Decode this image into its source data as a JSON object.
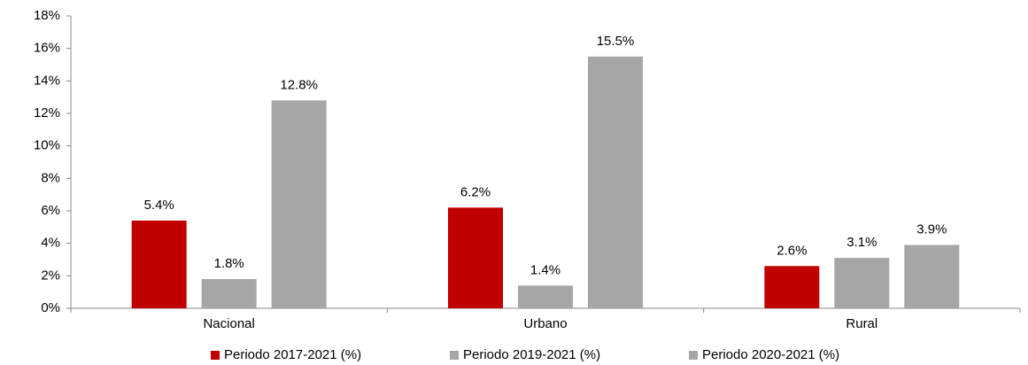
{
  "chart_data": {
    "type": "bar",
    "categories": [
      "Nacional",
      "Urbano",
      "Rural"
    ],
    "series": [
      {
        "name": "Periodo 2017-2021 (%)",
        "color": "#c00000",
        "values": [
          5.4,
          6.2,
          2.6
        ],
        "value_labels": [
          "5.4%",
          "6.2%",
          "2.6%"
        ]
      },
      {
        "name": "Periodo 2019-2021 (%)",
        "color": "#a6a6a6",
        "values": [
          1.8,
          1.4,
          3.1
        ],
        "value_labels": [
          "1.8%",
          "1.4%",
          "3.1%"
        ]
      },
      {
        "name": "Periodo 2020-2021 (%)",
        "color": "#a6a6a6",
        "values": [
          12.8,
          15.5,
          3.9
        ],
        "value_labels": [
          "12.8%",
          "15.5%",
          "3.9%"
        ]
      }
    ],
    "ylim": [
      0,
      18
    ],
    "yticks": [
      {
        "value": 0,
        "label": "0%"
      },
      {
        "value": 2,
        "label": "2%"
      },
      {
        "value": 4,
        "label": "4%"
      },
      {
        "value": 6,
        "label": "6%"
      },
      {
        "value": 8,
        "label": "8%"
      },
      {
        "value": 10,
        "label": "10%"
      },
      {
        "value": 12,
        "label": "12%"
      },
      {
        "value": 14,
        "label": "14%"
      },
      {
        "value": 16,
        "label": "16%"
      },
      {
        "value": 18,
        "label": "18%"
      }
    ],
    "grid": false,
    "legend": "bottom"
  }
}
